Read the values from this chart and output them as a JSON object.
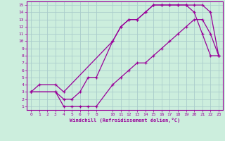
{
  "xlabel": "Windchill (Refroidissement éolien,°C)",
  "bg_color": "#cceedd",
  "grid_color": "#aacccc",
  "line_color": "#990099",
  "xlim": [
    -0.5,
    23.5
  ],
  "ylim": [
    0.5,
    15.5
  ],
  "xticks": [
    0,
    1,
    2,
    3,
    4,
    5,
    6,
    7,
    8,
    10,
    11,
    12,
    13,
    14,
    15,
    16,
    17,
    18,
    19,
    20,
    21,
    22,
    23
  ],
  "yticks": [
    1,
    2,
    3,
    4,
    5,
    6,
    7,
    8,
    9,
    10,
    11,
    12,
    13,
    14,
    15
  ],
  "curve1_x": [
    0,
    1,
    3,
    4,
    10,
    11,
    12,
    13,
    14,
    15,
    16,
    17,
    18,
    19,
    20,
    21,
    22,
    23
  ],
  "curve1_y": [
    3,
    4,
    4,
    3,
    10,
    12,
    13,
    13,
    14,
    15,
    15,
    15,
    15,
    15,
    15,
    15,
    14,
    8
  ],
  "curve2_x": [
    0,
    3,
    4,
    5,
    6,
    7,
    8,
    10,
    11,
    12,
    13,
    14,
    15,
    16,
    17,
    18,
    19,
    20,
    21,
    22,
    23
  ],
  "curve2_y": [
    3,
    3,
    2,
    2,
    3,
    5,
    5,
    10,
    12,
    13,
    13,
    14,
    15,
    15,
    15,
    15,
    15,
    14,
    11,
    8,
    8
  ],
  "curve3_x": [
    0,
    3,
    4,
    5,
    6,
    7,
    8,
    10,
    11,
    12,
    13,
    14,
    15,
    16,
    17,
    18,
    19,
    20,
    21,
    22,
    23
  ],
  "curve3_y": [
    3,
    3,
    1,
    1,
    1,
    1,
    1,
    4,
    5,
    6,
    7,
    7,
    8,
    9,
    10,
    11,
    12,
    13,
    13,
    11,
    8
  ]
}
